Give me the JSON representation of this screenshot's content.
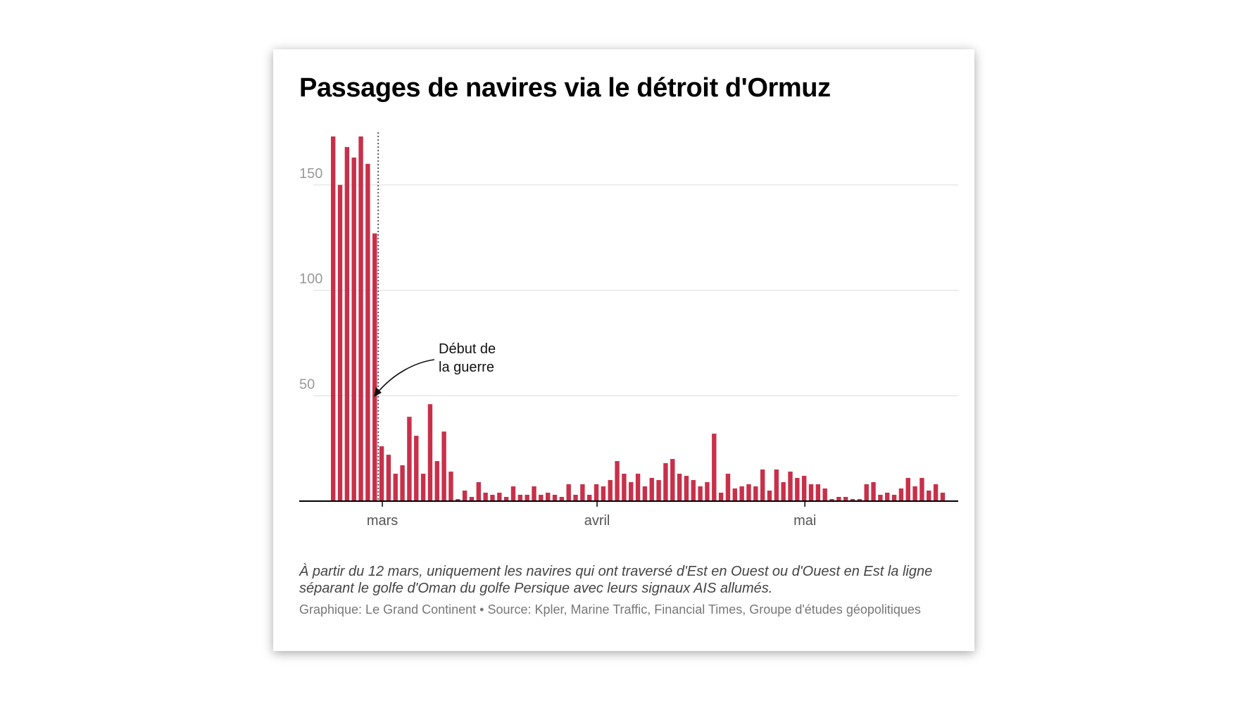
{
  "title": "Passages de navires via le détroit d'Ormuz",
  "note": "À partir du 12 mars, uniquement les navires qui ont traversé d'Est en Ouest ou d'Ouest en Est la ligne séparant le golfe d'Oman du golfe Persique avec leurs signaux AIS allumés.",
  "source": "Graphique: Le Grand Continent • Source: Kpler, Marine Traffic, Financial Times, Groupe d'études géopolitiques",
  "colors": {
    "bar": "#c8304a",
    "grid": "#e3e3e3",
    "axis": "#000000",
    "tick_label": "#999999",
    "month_label": "#555555"
  },
  "chart_data": {
    "type": "bar",
    "title": "Passages de navires via le détroit d'Ormuz",
    "xlabel": "",
    "ylabel": "",
    "ylim": [
      0,
      175
    ],
    "yticks": [
      50,
      100,
      150
    ],
    "grid": true,
    "first_bar_index": -7,
    "month_ticks": [
      {
        "label": "mars",
        "index": 0
      },
      {
        "label": "avril",
        "index": 31
      },
      {
        "label": "mai",
        "index": 61
      }
    ],
    "annotation": {
      "lines": [
        "Début de",
        "la guerre"
      ],
      "index": -0.5
    },
    "values": [
      173,
      150,
      168,
      163,
      173,
      160,
      127,
      26,
      22,
      13,
      17,
      40,
      31,
      13,
      46,
      19,
      33,
      14,
      1,
      5,
      2,
      9,
      4,
      3,
      4,
      2,
      7,
      3,
      3,
      7,
      3,
      4,
      3,
      2,
      8,
      3,
      8,
      3,
      8,
      7,
      10,
      19,
      13,
      9,
      13,
      7,
      11,
      10,
      18,
      20,
      13,
      12,
      10,
      7,
      9,
      32,
      4,
      13,
      6,
      7,
      8,
      7,
      15,
      5,
      15,
      9,
      14,
      11,
      12,
      8,
      8,
      6,
      1,
      2,
      2,
      1,
      1,
      8,
      9,
      3,
      4,
      3,
      6,
      11,
      7,
      11,
      5,
      8,
      4
    ]
  }
}
